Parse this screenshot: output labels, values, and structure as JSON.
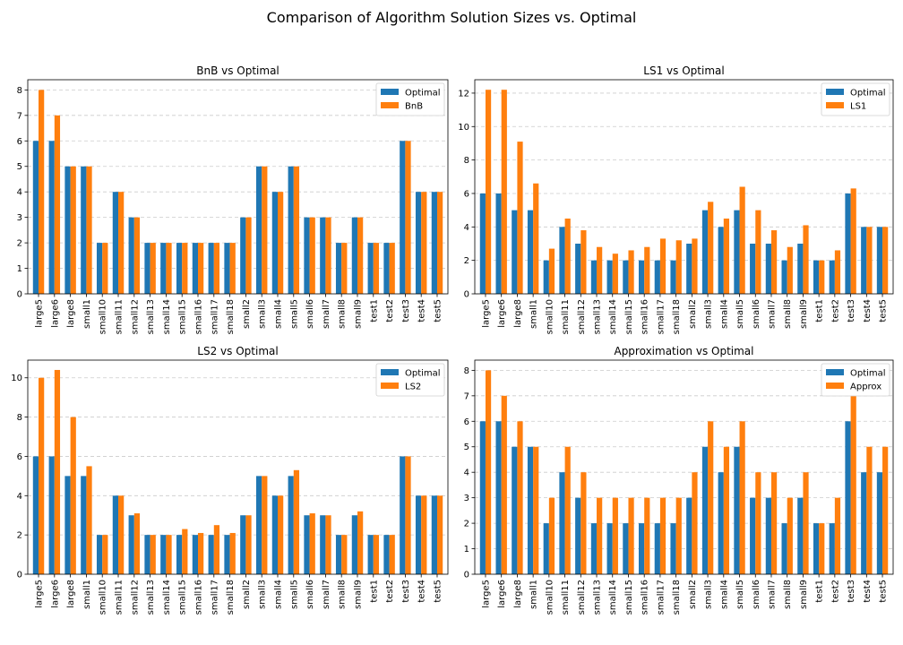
{
  "figure": {
    "title": "Comparison of Algorithm Solution Sizes vs. Optimal"
  },
  "colors": {
    "optimal": "#1f77b4",
    "algorithm": "#ff7f0e",
    "grid": "#cccccc"
  },
  "chart_data": [
    {
      "type": "bar",
      "title": "BnB vs Optimal",
      "categories": [
        "large5",
        "large6",
        "large8",
        "small1",
        "small10",
        "small11",
        "small12",
        "small13",
        "small14",
        "small15",
        "small16",
        "small17",
        "small18",
        "small2",
        "small3",
        "small4",
        "small5",
        "small6",
        "small7",
        "small8",
        "small9",
        "test1",
        "test2",
        "test3",
        "test4",
        "test5"
      ],
      "series": [
        {
          "name": "Optimal",
          "values": [
            6,
            6,
            5,
            5,
            2,
            4,
            3,
            2,
            2,
            2,
            2,
            2,
            2,
            3,
            5,
            4,
            5,
            3,
            3,
            2,
            3,
            2,
            2,
            6,
            4,
            4
          ]
        },
        {
          "name": "BnB",
          "values": [
            8,
            7,
            5,
            5,
            2,
            4,
            3,
            2,
            2,
            2,
            2,
            2,
            2,
            3,
            5,
            4,
            5,
            3,
            3,
            2,
            3,
            2,
            2,
            6,
            4,
            4
          ]
        }
      ],
      "ylim": [
        0,
        8.4
      ],
      "yticks": [
        0,
        1,
        2,
        3,
        4,
        5,
        6,
        7,
        8
      ],
      "grid": "y",
      "legend": "top-right"
    },
    {
      "type": "bar",
      "title": "LS1 vs Optimal",
      "categories": [
        "large5",
        "large6",
        "large8",
        "small1",
        "small10",
        "small11",
        "small12",
        "small13",
        "small14",
        "small15",
        "small16",
        "small17",
        "small18",
        "small2",
        "small3",
        "small4",
        "small5",
        "small6",
        "small7",
        "small8",
        "small9",
        "test1",
        "test2",
        "test3",
        "test4",
        "test5"
      ],
      "series": [
        {
          "name": "Optimal",
          "values": [
            6,
            6,
            5,
            5,
            2,
            4,
            3,
            2,
            2,
            2,
            2,
            2,
            2,
            3,
            5,
            4,
            5,
            3,
            3,
            2,
            3,
            2,
            2,
            6,
            4,
            4
          ]
        },
        {
          "name": "LS1",
          "values": [
            12.2,
            12.2,
            9.1,
            6.6,
            2.7,
            4.5,
            3.8,
            2.8,
            2.4,
            2.6,
            2.8,
            3.3,
            3.2,
            3.3,
            5.5,
            4.5,
            6.4,
            5.0,
            3.8,
            2.8,
            4.1,
            2.0,
            2.6,
            6.3,
            4.0,
            4.0
          ]
        }
      ],
      "ylim": [
        0,
        12.8
      ],
      "yticks": [
        0,
        2,
        4,
        6,
        8,
        10,
        12
      ],
      "grid": "y",
      "legend": "top-right"
    },
    {
      "type": "bar",
      "title": "LS2 vs Optimal",
      "categories": [
        "large5",
        "large6",
        "large8",
        "small1",
        "small10",
        "small11",
        "small12",
        "small13",
        "small14",
        "small15",
        "small16",
        "small17",
        "small18",
        "small2",
        "small3",
        "small4",
        "small5",
        "small6",
        "small7",
        "small8",
        "small9",
        "test1",
        "test2",
        "test3",
        "test4",
        "test5"
      ],
      "series": [
        {
          "name": "Optimal",
          "values": [
            6,
            6,
            5,
            5,
            2,
            4,
            3,
            2,
            2,
            2,
            2,
            2,
            2,
            3,
            5,
            4,
            5,
            3,
            3,
            2,
            3,
            2,
            2,
            6,
            4,
            4
          ]
        },
        {
          "name": "LS2",
          "values": [
            10.0,
            10.4,
            8.0,
            5.5,
            2.0,
            4.0,
            3.1,
            2.0,
            2.0,
            2.3,
            2.1,
            2.5,
            2.1,
            3.0,
            5.0,
            4.0,
            5.3,
            3.1,
            3.0,
            2.0,
            3.2,
            2.0,
            2.0,
            6.0,
            4.0,
            4.0
          ]
        }
      ],
      "ylim": [
        0,
        10.9
      ],
      "yticks": [
        0,
        2,
        4,
        6,
        8,
        10
      ],
      "grid": "y",
      "legend": "top-right"
    },
    {
      "type": "bar",
      "title": "Approximation vs Optimal",
      "categories": [
        "large5",
        "large6",
        "large8",
        "small1",
        "small10",
        "small11",
        "small12",
        "small13",
        "small14",
        "small15",
        "small16",
        "small17",
        "small18",
        "small2",
        "small3",
        "small4",
        "small5",
        "small6",
        "small7",
        "small8",
        "small9",
        "test1",
        "test2",
        "test3",
        "test4",
        "test5"
      ],
      "series": [
        {
          "name": "Optimal",
          "values": [
            6,
            6,
            5,
            5,
            2,
            4,
            3,
            2,
            2,
            2,
            2,
            2,
            2,
            3,
            5,
            4,
            5,
            3,
            3,
            2,
            3,
            2,
            2,
            6,
            4,
            4
          ]
        },
        {
          "name": "Approx",
          "values": [
            8,
            7,
            6,
            5,
            3,
            5,
            4,
            3,
            3,
            3,
            3,
            3,
            3,
            4,
            6,
            5,
            6,
            4,
            4,
            3,
            4,
            2,
            3,
            7,
            5,
            5
          ]
        }
      ],
      "ylim": [
        0,
        8.4
      ],
      "yticks": [
        0,
        1,
        2,
        3,
        4,
        5,
        6,
        7,
        8
      ],
      "grid": "y",
      "legend": "top-right"
    }
  ]
}
